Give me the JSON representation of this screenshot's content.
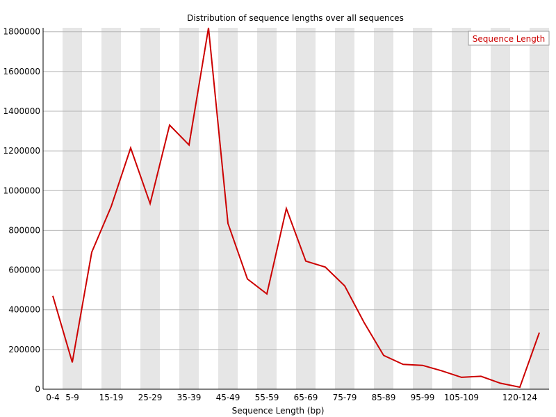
{
  "chart_data": {
    "type": "line",
    "title": "Distribution of sequence lengths over all sequences",
    "xlabel": "Sequence Length (bp)",
    "ylabel": "",
    "ylim": [
      0,
      1820000
    ],
    "y_ticks": [
      0,
      200000,
      400000,
      600000,
      800000,
      1000000,
      1200000,
      1400000,
      1600000,
      1800000
    ],
    "categories": [
      "0-4",
      "5-9",
      "10-14",
      "15-19",
      "20-24",
      "25-29",
      "30-34",
      "35-39",
      "40-44",
      "45-49",
      "50-54",
      "55-59",
      "60-64",
      "65-69",
      "70-74",
      "75-79",
      "80-84",
      "85-89",
      "90-94",
      "95-99",
      "100-104",
      "105-109",
      "110-114",
      "115-119",
      "120-124",
      "125-129"
    ],
    "shown_tick_labels": [
      "0-4",
      "5-9",
      "15-19",
      "25-29",
      "35-39",
      "45-49",
      "55-59",
      "65-69",
      "75-79",
      "85-89",
      "95-99",
      "105-109",
      "120-124"
    ],
    "series": [
      {
        "name": "Sequence Length",
        "color": "#cc0000",
        "values": [
          470000,
          135000,
          690000,
          920000,
          1215000,
          935000,
          1330000,
          1230000,
          1820000,
          835000,
          555000,
          480000,
          910000,
          645000,
          615000,
          520000,
          335000,
          170000,
          125000,
          120000,
          92000,
          60000,
          65000,
          30000,
          10000,
          285000
        ]
      }
    ],
    "grid": "horizontal",
    "band_shading": "alternating vertical bands",
    "legend": "top-right"
  }
}
